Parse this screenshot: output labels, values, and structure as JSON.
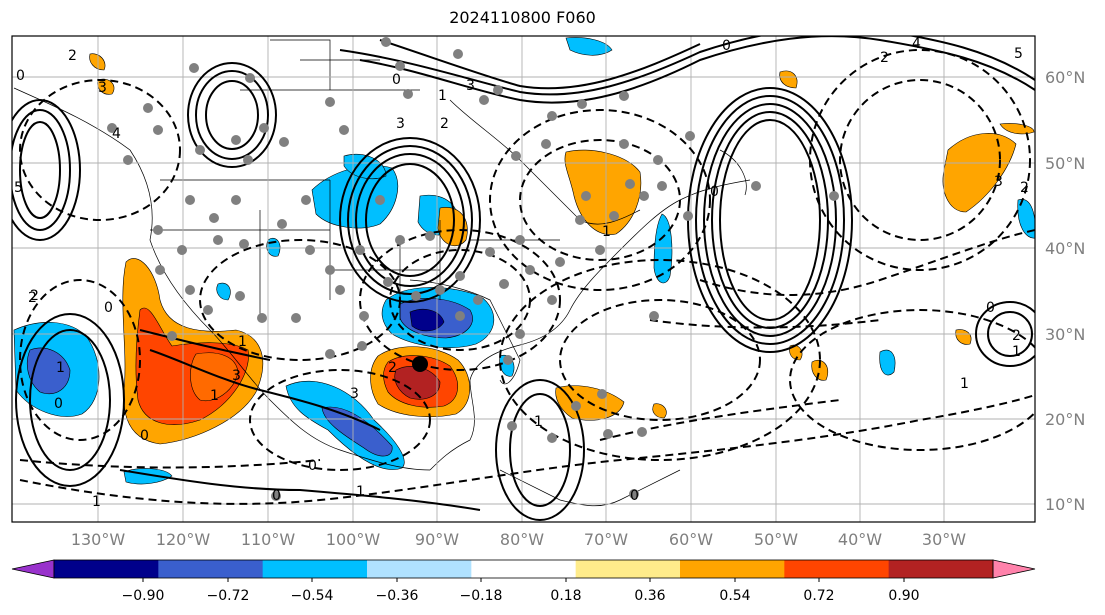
{
  "title": "2024110800 F060",
  "lon_labels": [
    "130°W",
    "120°W",
    "110°W",
    "100°W",
    "90°W",
    "80°W",
    "70°W",
    "60°W",
    "50°W",
    "40°W",
    "30°W"
  ],
  "lat_labels": [
    "60°N",
    "50°N",
    "40°N",
    "30°N",
    "20°N",
    "10°N"
  ],
  "colorbar": {
    "colors": [
      "#9932cc",
      "#00008b",
      "#3a5fcd",
      "#00bfff",
      "#b0e2ff",
      "#ffffff",
      "#ffec8b",
      "#ffa500",
      "#ff4500",
      "#b22222",
      "#ff82ab"
    ],
    "tick_labels": [
      "−0.90",
      "−0.72",
      "−0.54",
      "−0.36",
      "−0.18",
      "0.18",
      "0.36",
      "0.54",
      "0.72",
      "0.90"
    ]
  },
  "contour_labels": [
    "2",
    "3",
    "0",
    "5",
    "4",
    "3",
    "0",
    "3",
    "2",
    "1",
    "0",
    "5",
    "4",
    "2",
    "3",
    "2",
    "0",
    "1",
    "2",
    "1",
    "0",
    "1",
    "3",
    "1",
    "2",
    "1",
    "0",
    "3",
    "2",
    "1",
    "0",
    "0",
    "1",
    "0",
    "0",
    "2",
    "1",
    "1",
    "0"
  ],
  "marker": {
    "color": "#000000"
  }
}
